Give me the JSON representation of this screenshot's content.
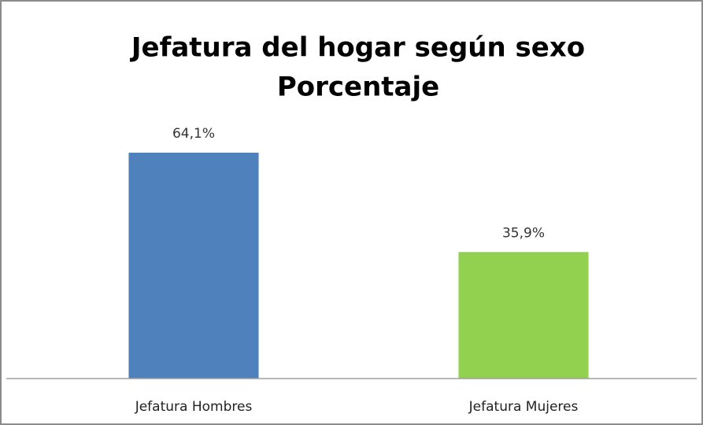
{
  "chart_data": {
    "type": "bar",
    "title": "Jefatura del hogar según sexo",
    "subtitle": "Porcentaje",
    "categories": [
      "Jefatura Hombres",
      "Jefatura Mujeres"
    ],
    "values": [
      64.1,
      35.9
    ],
    "value_labels": [
      "64,1%",
      "35,9%"
    ],
    "colors": [
      "#4f81bd",
      "#92d050"
    ]
  }
}
